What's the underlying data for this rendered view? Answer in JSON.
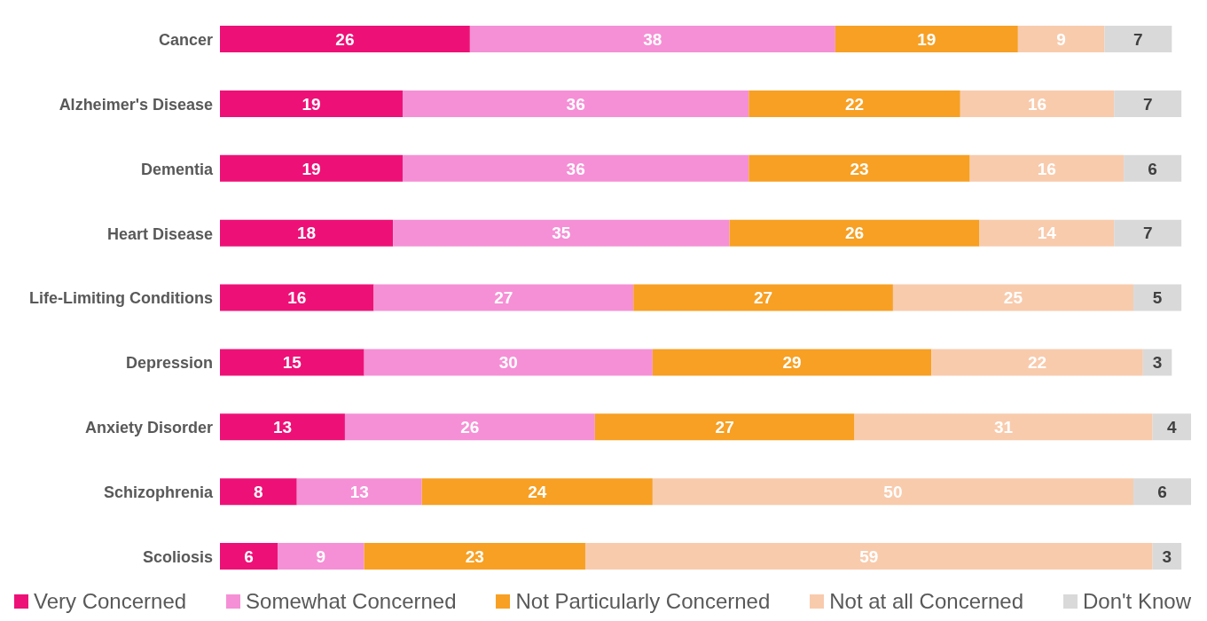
{
  "chart_data": {
    "type": "bar",
    "orientation": "horizontal",
    "stacked": true,
    "tick_labels": "y",
    "data_labels": true,
    "legend": "bottom",
    "grid": false,
    "categories": [
      "Cancer",
      "Alzheimer's Disease",
      "Dementia",
      "Heart Disease",
      "Life-Limiting Conditions",
      "Depression",
      "Anxiety Disorder",
      "Schizophrenia",
      "Scoliosis"
    ],
    "series": [
      {
        "name": "Very Concerned",
        "color": "#ed1177",
        "values": [
          26,
          19,
          19,
          18,
          16,
          15,
          13,
          8,
          6
        ]
      },
      {
        "name": "Somewhat Concerned",
        "color": "#f590d6",
        "values": [
          38,
          36,
          36,
          35,
          27,
          30,
          26,
          13,
          9
        ]
      },
      {
        "name": "Not Particularly Concerned",
        "color": "#f7a024",
        "values": [
          19,
          22,
          23,
          26,
          27,
          29,
          27,
          24,
          23
        ]
      },
      {
        "name": "Not at all Concerned",
        "color": "#f8cbad",
        "values": [
          9,
          16,
          16,
          14,
          25,
          22,
          31,
          50,
          59
        ]
      },
      {
        "name": "Don't Know",
        "color": "#d9d9d9",
        "values": [
          7,
          7,
          6,
          7,
          5,
          3,
          4,
          6,
          3
        ]
      }
    ]
  }
}
